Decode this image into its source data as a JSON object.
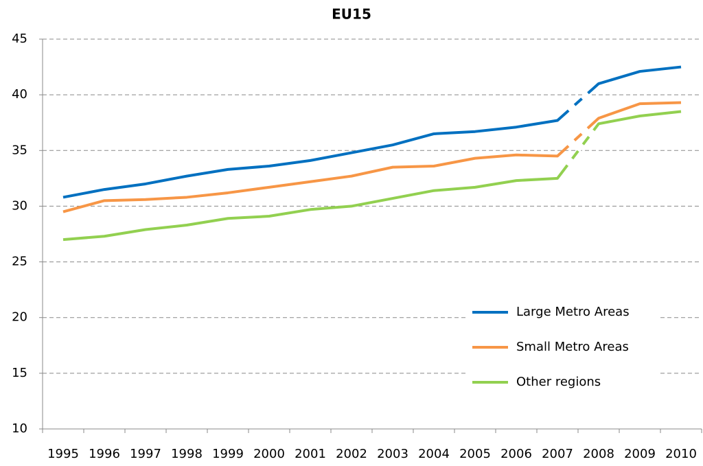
{
  "chart_data": {
    "type": "line",
    "title": "EU15",
    "categories": [
      "1995",
      "1996",
      "1997",
      "1998",
      "1999",
      "2000",
      "2001",
      "2002",
      "2003",
      "2004",
      "2005",
      "2006",
      "2007",
      "2008",
      "2009",
      "2010"
    ],
    "series": [
      {
        "name": "Large Metro Areas",
        "color": "#0070c0",
        "values": [
          30.8,
          31.5,
          32.0,
          32.7,
          33.3,
          33.6,
          34.1,
          34.8,
          35.5,
          36.5,
          36.7,
          37.1,
          37.7,
          41.0,
          42.1,
          42.5
        ]
      },
      {
        "name": "Small Metro Areas",
        "color": "#f79646",
        "values": [
          29.5,
          30.5,
          30.6,
          30.8,
          31.2,
          31.7,
          32.2,
          32.7,
          33.5,
          33.6,
          34.3,
          34.6,
          34.5,
          37.9,
          39.2,
          39.3
        ]
      },
      {
        "name": "Other regions",
        "color": "#92d050",
        "values": [
          27.0,
          27.3,
          27.9,
          28.3,
          28.9,
          29.1,
          29.7,
          30.0,
          30.7,
          31.4,
          31.7,
          32.3,
          32.5,
          37.4,
          38.1,
          38.5
        ]
      }
    ],
    "dashed_from": "2007",
    "ylim": [
      10,
      45
    ],
    "yticks": [
      10,
      15,
      20,
      25,
      30,
      35,
      40,
      45
    ],
    "grid": true,
    "legend_position": "lower right"
  }
}
